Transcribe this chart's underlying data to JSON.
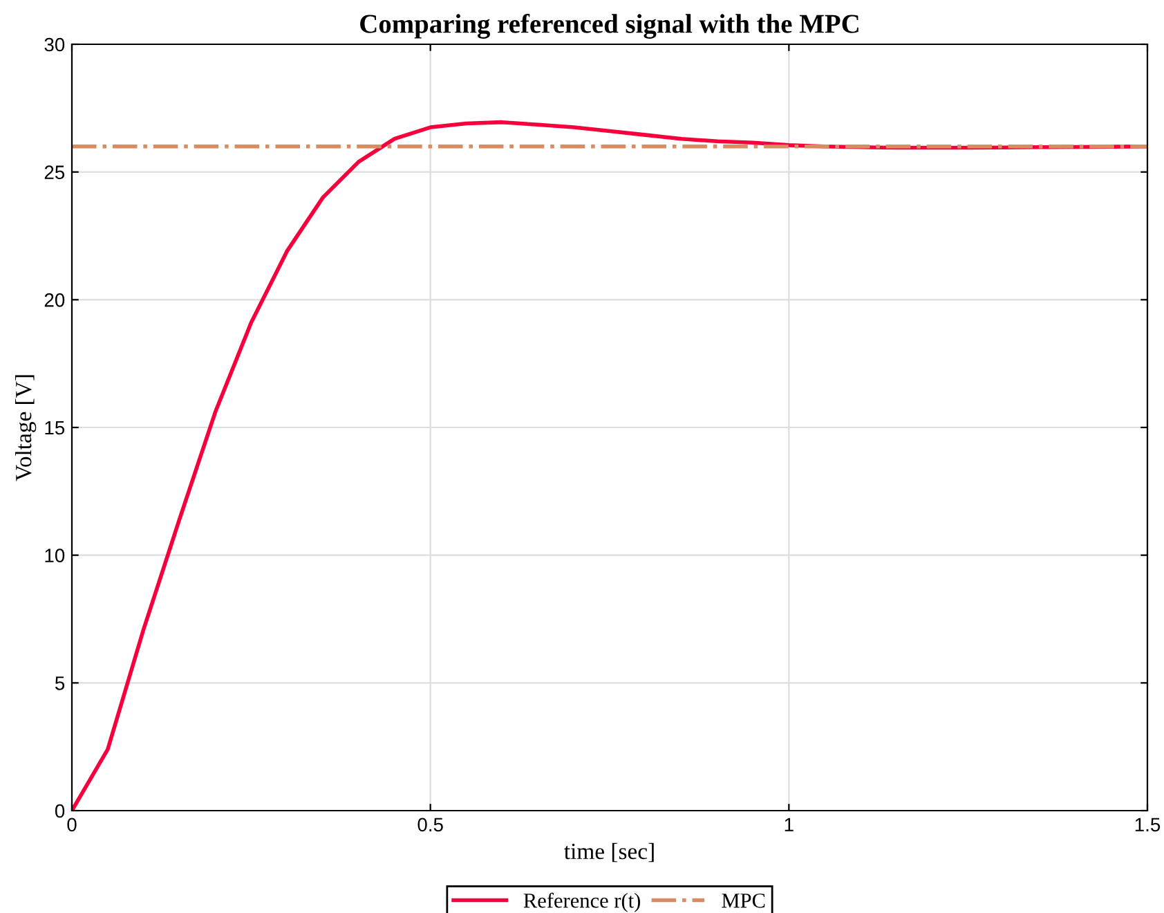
{
  "chart_data": {
    "type": "line",
    "title": "Comparing referenced signal with the MPC",
    "xlabel": "time [sec]",
    "ylabel": "Voltage [V]",
    "xlim": [
      0,
      1.5
    ],
    "ylim": [
      0,
      30
    ],
    "xticks": [
      0,
      0.5,
      1,
      1.5
    ],
    "yticks": [
      0,
      5,
      10,
      15,
      20,
      25,
      30
    ],
    "grid": true,
    "legend": "bottom",
    "series": [
      {
        "name": "Reference r(t)",
        "color": "#f5003c",
        "line_style": "solid",
        "x": [
          0,
          0.05,
          0.1,
          0.15,
          0.2,
          0.25,
          0.3,
          0.35,
          0.4,
          0.45,
          0.5,
          0.55,
          0.6,
          0.65,
          0.7,
          0.75,
          0.8,
          0.85,
          0.9,
          0.95,
          1.0,
          1.05,
          1.1,
          1.15,
          1.2,
          1.25,
          1.3,
          1.35,
          1.4,
          1.45,
          1.5
        ],
        "values": [
          0,
          2.4,
          7.1,
          11.4,
          15.6,
          19.1,
          21.9,
          24.0,
          25.4,
          26.3,
          26.75,
          26.9,
          26.95,
          26.85,
          26.75,
          26.6,
          26.45,
          26.3,
          26.2,
          26.15,
          26.05,
          26.0,
          25.97,
          25.95,
          25.95,
          25.95,
          25.96,
          25.97,
          25.98,
          25.99,
          26.0
        ]
      },
      {
        "name": "MPC",
        "color": "#d98b62",
        "line_style": "dashdot",
        "x": [
          0,
          1.5
        ],
        "values": [
          26,
          26
        ]
      }
    ]
  }
}
